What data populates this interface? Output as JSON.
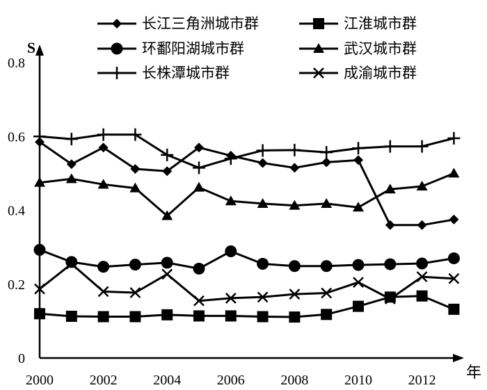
{
  "chart_data": {
    "type": "line",
    "title": "",
    "xlabel": "年",
    "ylabel": "S",
    "ylim": [
      0,
      0.8
    ],
    "yticks": [
      0,
      0.2,
      0.4,
      0.6,
      0.8
    ],
    "ytick_labels": [
      "0",
      "0.2",
      "0.4",
      "0.6",
      "0.8"
    ],
    "x": [
      2000,
      2001,
      2002,
      2003,
      2004,
      2005,
      2006,
      2007,
      2008,
      2009,
      2010,
      2011,
      2012,
      2013
    ],
    "xticks": [
      2000,
      2002,
      2004,
      2006,
      2008,
      2010,
      2012
    ],
    "xtick_labels": [
      "2000",
      "2002",
      "2004",
      "2006",
      "2008",
      "2010",
      "2012"
    ],
    "grid": false,
    "legend_position": "top",
    "line_color": "#000000",
    "series": [
      {
        "name": "长江三角洲城市群",
        "marker": "diamond",
        "values": [
          0.585,
          0.525,
          0.57,
          0.512,
          0.506,
          0.57,
          0.548,
          0.528,
          0.515,
          0.53,
          0.536,
          0.36,
          0.36,
          0.375
        ]
      },
      {
        "name": "江淮城市群",
        "marker": "square",
        "values": [
          0.12,
          0.113,
          0.112,
          0.112,
          0.117,
          0.114,
          0.114,
          0.112,
          0.111,
          0.118,
          0.14,
          0.165,
          0.168,
          0.132
        ]
      },
      {
        "name": "环鄱阳湖城市群",
        "marker": "circle",
        "values": [
          0.293,
          0.26,
          0.247,
          0.253,
          0.258,
          0.242,
          0.289,
          0.255,
          0.249,
          0.249,
          0.252,
          0.254,
          0.256,
          0.27
        ]
      },
      {
        "name": "武汉城市群",
        "marker": "triangle",
        "values": [
          0.475,
          0.485,
          0.47,
          0.46,
          0.385,
          0.462,
          0.425,
          0.418,
          0.413,
          0.418,
          0.408,
          0.457,
          0.465,
          0.5
        ]
      },
      {
        "name": "长株潭城市群",
        "marker": "plus",
        "values": [
          0.6,
          0.593,
          0.605,
          0.605,
          0.55,
          0.515,
          0.54,
          0.562,
          0.563,
          0.557,
          0.568,
          0.573,
          0.573,
          0.595
        ]
      },
      {
        "name": "成渝城市群",
        "marker": "x",
        "values": [
          0.187,
          0.255,
          0.18,
          0.177,
          0.227,
          0.155,
          0.162,
          0.165,
          0.173,
          0.176,
          0.205,
          0.16,
          0.22,
          0.215
        ]
      }
    ]
  }
}
